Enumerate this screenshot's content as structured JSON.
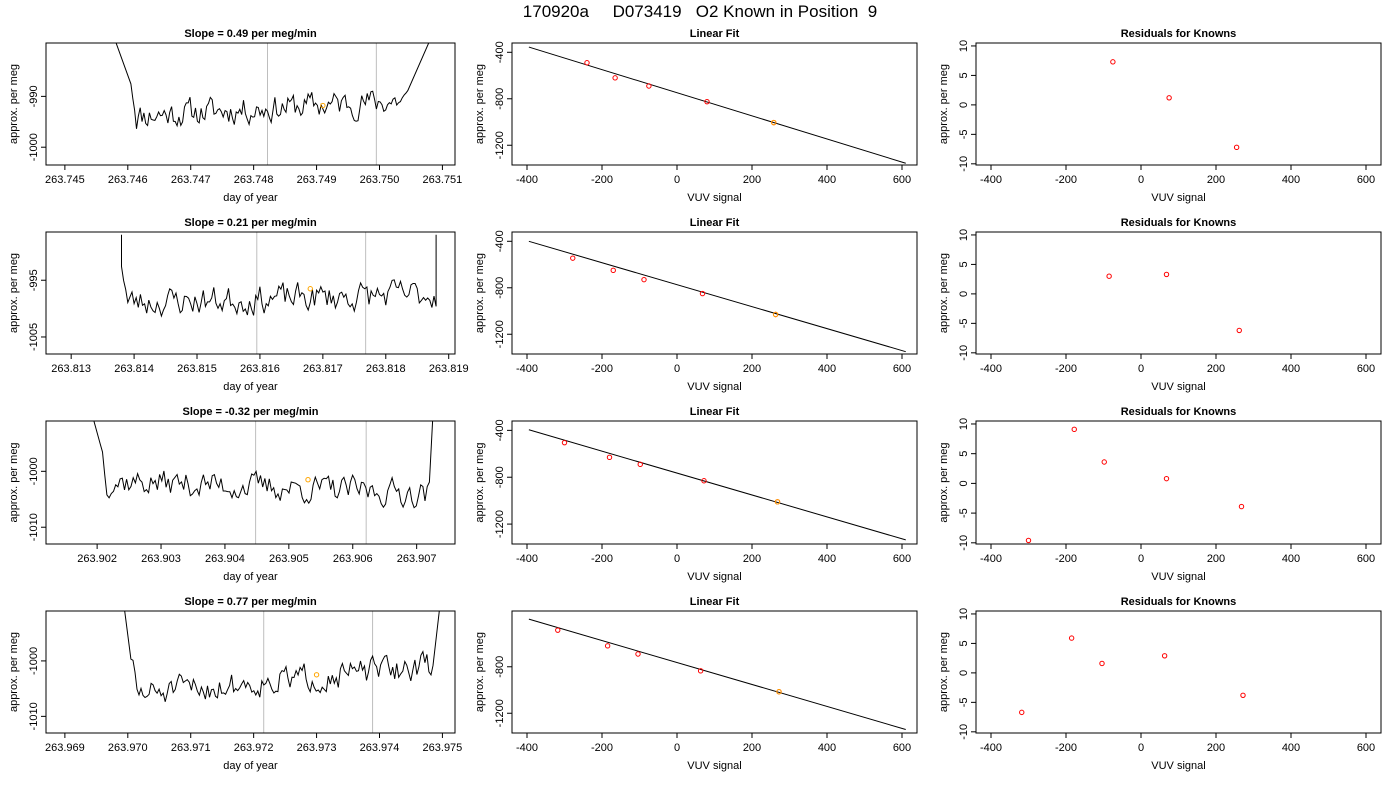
{
  "main_title": "170920a     D073419   O2 Known in Position  9",
  "colors": {
    "line": "#000000",
    "marker_red": "#ff0000",
    "marker_orange": "#ffa500",
    "vline": "#bebebe"
  },
  "chart_data": [
    {
      "type": "line",
      "title": "Slope =  0.49  per meg/min",
      "xlabel": "day of year",
      "ylabel": "approx. per meg",
      "xlim": [
        263.7447,
        263.7512
      ],
      "ylim": [
        -1003.5,
        -979.5
      ],
      "xticks": [
        "263.745",
        "263.746",
        "263.747",
        "263.748",
        "263.749",
        "263.750",
        "263.751"
      ],
      "yticks": [
        -1000,
        -990
      ],
      "ytick_labels": [
        "-1000",
        "-990"
      ],
      "vlines": [
        263.74822,
        263.74995
      ],
      "marker": {
        "x": 263.7491,
        "y": -991.8
      },
      "trace": {
        "x_start": 263.74605,
        "x_end": 263.75045,
        "y_base": -992.3,
        "y_spread": 4.2,
        "seed": 11,
        "left_spike": [
          263.7458,
          -979
        ],
        "right_spike": [
          263.7508,
          -979
        ],
        "slope_per_min": 0.49
      }
    },
    {
      "type": "line",
      "title": "Slope =  0.21  per meg/min",
      "xlabel": "day of year",
      "ylabel": "approx. per meg",
      "xlim": [
        263.8126,
        263.8191
      ],
      "ylim": [
        -1008,
        -986.5
      ],
      "xticks": [
        "263.813",
        "263.814",
        "263.815",
        "263.816",
        "263.817",
        "263.818",
        "263.819"
      ],
      "yticks": [
        -1005,
        -995
      ],
      "ytick_labels": [
        "-1005",
        "-995"
      ],
      "vlines": [
        263.81595,
        263.81768
      ],
      "marker": {
        "x": 263.8168,
        "y": -996.5
      },
      "trace": {
        "x_start": 263.8138,
        "x_end": 263.8188,
        "y_base": -998.2,
        "y_spread": 4.0,
        "seed": 23,
        "left_spike": [
          263.8138,
          -987
        ],
        "right_spike": [
          263.8188,
          -987
        ],
        "slope_per_min": 0.21
      }
    },
    {
      "type": "line",
      "title": "Slope =  -0.32  per meg/min",
      "xlabel": "day of year",
      "ylabel": "approx. per meg",
      "xlim": [
        263.9012,
        263.9076
      ],
      "ylim": [
        -1013,
        -991
      ],
      "xticks": [
        "263.902",
        "263.903",
        "263.904",
        "263.905",
        "263.906",
        "263.907"
      ],
      "yticks": [
        -1010,
        -1000
      ],
      "ytick_labels": [
        "-1010",
        "-1000"
      ],
      "vlines": [
        263.90448,
        263.90621
      ],
      "marker": {
        "x": 263.9053,
        "y": -1001.5
      },
      "trace": {
        "x_start": 263.90205,
        "x_end": 263.9072,
        "y_base": -1002.8,
        "y_spread": 3.8,
        "seed": 37,
        "left_spike": [
          263.90195,
          -991
        ],
        "right_spike": [
          263.90725,
          -991
        ],
        "slope_per_min": -0.32
      }
    },
    {
      "type": "line",
      "title": "Slope =  0.77  per meg/min",
      "xlabel": "day of year",
      "ylabel": "approx. per meg",
      "xlim": [
        263.9687,
        263.9752
      ],
      "ylim": [
        -1013,
        -991
      ],
      "xticks": [
        "263.969",
        "263.970",
        "263.971",
        "263.972",
        "263.973",
        "263.974",
        "263.975"
      ],
      "yticks": [
        -1010,
        -1000
      ],
      "ytick_labels": [
        "-1010",
        "-1000"
      ],
      "vlines": [
        263.97216,
        263.97389
      ],
      "marker": {
        "x": 263.973,
        "y": -1002.5
      },
      "trace": {
        "x_start": 263.97005,
        "x_end": 263.97485,
        "y_base": -1003.5,
        "y_spread": 3.8,
        "seed": 51,
        "left_spike": [
          263.96995,
          -991
        ],
        "right_spike": [
          263.97495,
          -991
        ],
        "slope_per_min": 0.77
      }
    },
    {
      "type": "scatter",
      "title": "Linear Fit",
      "xlabel": "VUV signal",
      "ylabel": "approx. per meg",
      "xlim": [
        -440,
        640
      ],
      "ylim": [
        -1370,
        -320
      ],
      "xticks": [
        -400,
        -200,
        0,
        200,
        400,
        600
      ],
      "yticks": [
        -1200,
        -800,
        -400
      ],
      "ytick_labels": [
        "-1200",
        "-800",
        "-400"
      ],
      "fit_line": {
        "x": [
          -395,
          610
        ],
        "y": [
          -355,
          -1355
        ]
      },
      "points": {
        "x": [
          -240,
          -165,
          -75,
          80,
          258
        ],
        "y": [
          -490,
          -620,
          -690,
          -825,
          -1005
        ]
      },
      "orange_points": {
        "x": [
          258
        ],
        "y": [
          -1005
        ]
      }
    },
    {
      "type": "scatter",
      "title": "Linear Fit",
      "xlabel": "VUV signal",
      "ylabel": "approx. per meg",
      "xlim": [
        -440,
        640
      ],
      "ylim": [
        -1370,
        -320
      ],
      "xticks": [
        -400,
        -200,
        0,
        200,
        400,
        600
      ],
      "yticks": [
        -1200,
        -800,
        -400
      ],
      "ytick_labels": [
        "-1200",
        "-800",
        "-400"
      ],
      "fit_line": {
        "x": [
          -395,
          610
        ],
        "y": [
          -400,
          -1350
        ]
      },
      "points": {
        "x": [
          -278,
          -170,
          -88,
          68,
          263
        ],
        "y": [
          -545,
          -650,
          -730,
          -850,
          -1030
        ]
      },
      "orange_points": {
        "x": [
          263
        ],
        "y": [
          -1030
        ]
      }
    },
    {
      "type": "scatter",
      "title": "Linear Fit",
      "xlabel": "VUV signal",
      "ylabel": "approx. per meg",
      "xlim": [
        -440,
        640
      ],
      "ylim": [
        -1370,
        -320
      ],
      "xticks": [
        -400,
        -200,
        0,
        200,
        400,
        600
      ],
      "yticks": [
        -1200,
        -800,
        -400
      ],
      "ytick_labels": [
        "-1200",
        "-800",
        "-400"
      ],
      "fit_line": {
        "x": [
          -395,
          610
        ],
        "y": [
          -395,
          -1335
        ]
      },
      "points": {
        "x": [
          -300,
          -180,
          -98,
          72,
          268
        ],
        "y": [
          -505,
          -630,
          -690,
          -830,
          -1010
        ]
      },
      "orange_points": {
        "x": [
          268
        ],
        "y": [
          -1010
        ]
      }
    },
    {
      "type": "scatter",
      "title": "Linear Fit",
      "xlabel": "VUV signal",
      "ylabel": "approx. per meg",
      "xlim": [
        -440,
        640
      ],
      "ylim": [
        -1370,
        -320
      ],
      "xticks": [
        -400,
        -200,
        0,
        200,
        400,
        600
      ],
      "yticks": [
        -1200,
        -800
      ],
      "ytick_labels": [
        "-1200",
        "-800"
      ],
      "fit_line": {
        "x": [
          -395,
          610
        ],
        "y": [
          -390,
          -1340
        ]
      },
      "points": {
        "x": [
          -318,
          -185,
          -104,
          63,
          272
        ],
        "y": [
          -485,
          -620,
          -690,
          -835,
          -1015
        ]
      },
      "orange_points": {
        "x": [
          272
        ],
        "y": [
          -1015
        ]
      }
    },
    {
      "type": "scatter",
      "title": "Residuals for Knowns",
      "xlabel": "VUV signal",
      "ylabel": "approx. per meg",
      "xlim": [
        -440,
        640
      ],
      "ylim": [
        -10.2,
        10.5
      ],
      "xticks": [
        -400,
        -200,
        0,
        200,
        400,
        600
      ],
      "yticks": [
        -10,
        -5,
        0,
        5,
        10
      ],
      "ytick_labels": [
        "-10",
        "-5",
        "0",
        "5",
        "10"
      ],
      "points": {
        "x": [
          -75,
          75,
          255
        ],
        "y": [
          7.3,
          1.2,
          -7.2
        ]
      }
    },
    {
      "type": "scatter",
      "title": "Residuals for Knowns",
      "xlabel": "VUV signal",
      "ylabel": "approx. per meg",
      "xlim": [
        -440,
        640
      ],
      "ylim": [
        -10.2,
        10.5
      ],
      "xticks": [
        -400,
        -200,
        0,
        200,
        400,
        600
      ],
      "yticks": [
        -10,
        -5,
        0,
        5,
        10
      ],
      "ytick_labels": [
        "-10",
        "-5",
        "0",
        "5",
        "10"
      ],
      "points": {
        "x": [
          -85,
          68,
          262
        ],
        "y": [
          3.0,
          3.3,
          -6.2
        ]
      }
    },
    {
      "type": "scatter",
      "title": "Residuals for Knowns",
      "xlabel": "VUV signal",
      "ylabel": "approx. per meg",
      "xlim": [
        -440,
        640
      ],
      "ylim": [
        -10.2,
        10.5
      ],
      "xticks": [
        -400,
        -200,
        0,
        200,
        400,
        600
      ],
      "yticks": [
        -10,
        -5,
        0,
        5,
        10
      ],
      "ytick_labels": [
        "-10",
        "-5",
        "0",
        "5",
        "10"
      ],
      "points": {
        "x": [
          -300,
          -178,
          -98,
          68,
          268
        ],
        "y": [
          -9.6,
          9.1,
          3.6,
          0.8,
          -3.9
        ]
      }
    },
    {
      "type": "scatter",
      "title": "Residuals for Knowns",
      "xlabel": "VUV signal",
      "ylabel": "approx. per meg",
      "xlim": [
        -440,
        640
      ],
      "ylim": [
        -10.2,
        10.5
      ],
      "xticks": [
        -400,
        -200,
        0,
        200,
        400,
        600
      ],
      "yticks": [
        -10,
        -5,
        0,
        5,
        10
      ],
      "ytick_labels": [
        "-10",
        "-5",
        "0",
        "5",
        "10"
      ],
      "points": {
        "x": [
          -318,
          -185,
          -104,
          63,
          272
        ],
        "y": [
          -6.7,
          5.9,
          1.6,
          2.9,
          -3.8
        ]
      }
    }
  ]
}
